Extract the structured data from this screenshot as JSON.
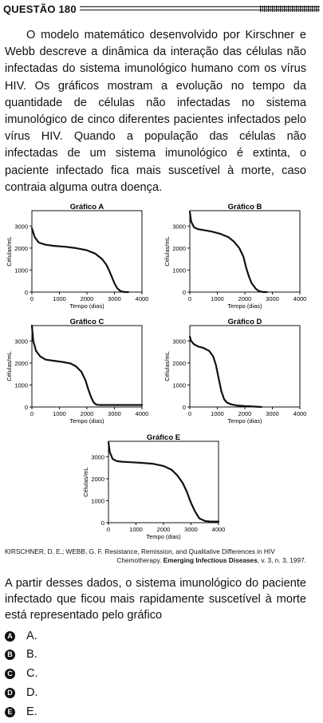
{
  "header": {
    "title": "QUESTÃO 180"
  },
  "intro": "O modelo matemático desenvolvido por Kirschner e Webb descreve a dinâmica da interação das células não infectadas do sistema imunológico humano com os vírus HIV. Os gráficos mostram a evolução no tempo da quantidade de células não infectadas no sistema imunológico de cinco diferentes pacientes infectados pelo vírus HIV. Quando a população das células não infectadas de um sistema imunológico é extinta, o paciente infectado fica mais suscetível à morte, caso contraia alguma outra doença.",
  "chart_data": [
    {
      "type": "line",
      "title": "Gráfico A",
      "xlabel": "Tempo (dias)",
      "ylabel": "Células/mL",
      "xlim": [
        0,
        4000
      ],
      "ylim": [
        0,
        3700
      ],
      "xticks": [
        "0",
        "1000",
        "2000",
        "3000",
        "4000"
      ],
      "yticks": [
        "0",
        "1000",
        "2000",
        "3000"
      ],
      "x": [
        0,
        100,
        250,
        500,
        800,
        1200,
        1600,
        2000,
        2300,
        2550,
        2700,
        2800,
        2900,
        3000,
        3100,
        3200,
        3300,
        3400,
        3500
      ],
      "y": [
        2900,
        2500,
        2250,
        2150,
        2100,
        2060,
        2000,
        1900,
        1750,
        1500,
        1250,
        1000,
        700,
        400,
        180,
        60,
        15,
        0,
        0
      ]
    },
    {
      "type": "line",
      "title": "Gráfico B",
      "xlabel": "Tempo (dias)",
      "ylabel": "Células/mL",
      "xlim": [
        0,
        4000
      ],
      "ylim": [
        0,
        3700
      ],
      "xticks": [
        "0",
        "1000",
        "2000",
        "3000",
        "4000"
      ],
      "yticks": [
        "0",
        "1000",
        "2000",
        "3000"
      ],
      "x": [
        0,
        50,
        150,
        300,
        500,
        800,
        1100,
        1400,
        1600,
        1800,
        1950,
        2050,
        2150,
        2250,
        2400,
        2500,
        2600,
        2700,
        2800
      ],
      "y": [
        3650,
        3200,
        2950,
        2860,
        2820,
        2750,
        2650,
        2500,
        2300,
        2000,
        1600,
        1100,
        700,
        400,
        150,
        50,
        15,
        0,
        0
      ]
    },
    {
      "type": "line",
      "title": "Gráfico C",
      "xlabel": "Tempo (dias)",
      "ylabel": "Células/mL",
      "xlim": [
        0,
        4000
      ],
      "ylim": [
        0,
        3700
      ],
      "xticks": [
        "0",
        "1000",
        "2000",
        "3000",
        "4000"
      ],
      "yticks": [
        "0",
        "1000",
        "2000",
        "3000"
      ],
      "x": [
        0,
        50,
        150,
        300,
        500,
        800,
        1100,
        1400,
        1600,
        1800,
        1950,
        2050,
        2150,
        2250,
        2350,
        2500,
        3000,
        3500,
        4000
      ],
      "y": [
        3700,
        3000,
        2550,
        2300,
        2150,
        2100,
        2050,
        1980,
        1850,
        1600,
        1200,
        800,
        450,
        200,
        100,
        90,
        90,
        90,
        90
      ]
    },
    {
      "type": "line",
      "title": "Gráfico D",
      "xlabel": "Tempo (dias)",
      "ylabel": "Células/mL",
      "xlim": [
        0,
        4000
      ],
      "ylim": [
        0,
        3700
      ],
      "xticks": [
        "0",
        "1000",
        "2000",
        "3000",
        "4000"
      ],
      "yticks": [
        "0",
        "1000",
        "2000",
        "3000"
      ],
      "x": [
        0,
        50,
        150,
        300,
        500,
        700,
        850,
        950,
        1050,
        1150,
        1250,
        1350,
        1500,
        1700,
        2000,
        2300,
        2600
      ],
      "y": [
        3200,
        3000,
        2850,
        2750,
        2680,
        2550,
        2300,
        1900,
        1300,
        700,
        350,
        200,
        120,
        70,
        40,
        20,
        0
      ]
    },
    {
      "type": "line",
      "title": "Gráfico E",
      "xlabel": "Tempo (dias)",
      "ylabel": "Células/mL",
      "xlim": [
        0,
        4000
      ],
      "ylim": [
        0,
        3700
      ],
      "xticks": [
        "0",
        "1000",
        "2000",
        "3000",
        "4000"
      ],
      "yticks": [
        "0",
        "1000",
        "2000",
        "3000"
      ],
      "x": [
        0,
        50,
        150,
        300,
        500,
        800,
        1200,
        1600,
        2000,
        2300,
        2500,
        2700,
        2850,
        3000,
        3150,
        3300,
        3500,
        3700,
        4000
      ],
      "y": [
        3650,
        3200,
        2900,
        2800,
        2770,
        2750,
        2720,
        2680,
        2580,
        2400,
        2150,
        1800,
        1400,
        900,
        500,
        200,
        80,
        50,
        50
      ]
    }
  ],
  "reference": {
    "line1": "KIRSCHNER, D. E.; WEBB, G. F. Resistance, Remission, and Qualitative Differences in HIV",
    "line2_pre": "Chemotherapy. ",
    "line2_bold": "Emerging Infectious Diseases",
    "line2_post": ", v. 3, n. 3, 1997."
  },
  "question": "A partir desses dados, o sistema imunológico do paciente infectado que ficou mais rapidamente suscetível à morte está representado pelo gráfico",
  "options": [
    {
      "letter": "A",
      "text": "A."
    },
    {
      "letter": "B",
      "text": "B."
    },
    {
      "letter": "C",
      "text": "C."
    },
    {
      "letter": "D",
      "text": "D."
    },
    {
      "letter": "E",
      "text": "E."
    }
  ]
}
